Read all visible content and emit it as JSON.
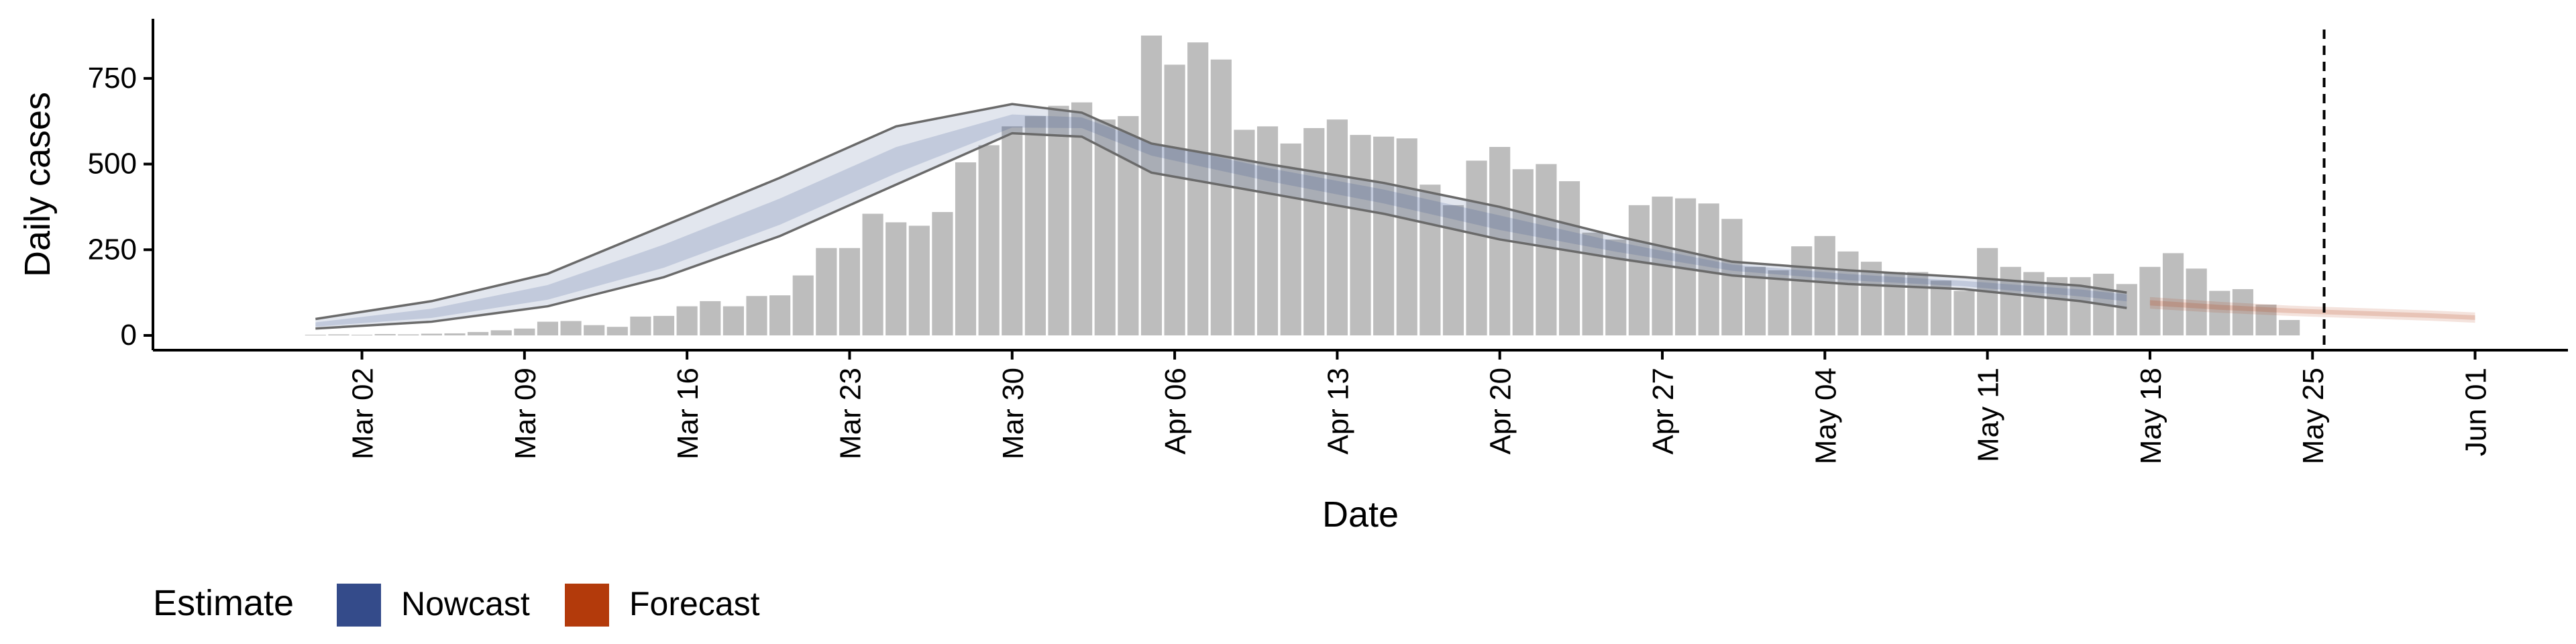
{
  "chart_data": {
    "type": "bar",
    "xlabel": "Date",
    "ylabel": "Daily cases",
    "ylim": [
      0,
      920
    ],
    "y_ticks": [
      0,
      250,
      500,
      750
    ],
    "x_tick_labels": [
      "Mar 02",
      "Mar 09",
      "Mar 16",
      "Mar 23",
      "Mar 30",
      "Apr 06",
      "Apr 13",
      "Apr 20",
      "Apr 27",
      "May 04",
      "May 11",
      "May 18",
      "May 25",
      "Jun 01"
    ],
    "x_tick_dates": [
      "2020-03-02",
      "2020-03-09",
      "2020-03-16",
      "2020-03-23",
      "2020-03-30",
      "2020-04-06",
      "2020-04-13",
      "2020-04-20",
      "2020-04-27",
      "2020-05-04",
      "2020-05-11",
      "2020-05-18",
      "2020-05-25",
      "2020-06-01"
    ],
    "x_range": [
      "2020-02-22",
      "2020-06-05"
    ],
    "bar_color": "#bdbdbd",
    "bars": {
      "dates": [
        "2020-02-29",
        "2020-03-01",
        "2020-03-02",
        "2020-03-03",
        "2020-03-04",
        "2020-03-05",
        "2020-03-06",
        "2020-03-07",
        "2020-03-08",
        "2020-03-09",
        "2020-03-10",
        "2020-03-11",
        "2020-03-12",
        "2020-03-13",
        "2020-03-14",
        "2020-03-15",
        "2020-03-16",
        "2020-03-17",
        "2020-03-18",
        "2020-03-19",
        "2020-03-20",
        "2020-03-21",
        "2020-03-22",
        "2020-03-23",
        "2020-03-24",
        "2020-03-25",
        "2020-03-26",
        "2020-03-27",
        "2020-03-28",
        "2020-03-29",
        "2020-03-30",
        "2020-03-31",
        "2020-04-01",
        "2020-04-02",
        "2020-04-03",
        "2020-04-04",
        "2020-04-05",
        "2020-04-06",
        "2020-04-07",
        "2020-04-08",
        "2020-04-09",
        "2020-04-10",
        "2020-04-11",
        "2020-04-12",
        "2020-04-13",
        "2020-04-14",
        "2020-04-15",
        "2020-04-16",
        "2020-04-17",
        "2020-04-18",
        "2020-04-19",
        "2020-04-20",
        "2020-04-21",
        "2020-04-22",
        "2020-04-23",
        "2020-04-24",
        "2020-04-25",
        "2020-04-26",
        "2020-04-27",
        "2020-04-28",
        "2020-04-29",
        "2020-04-30",
        "2020-05-01",
        "2020-05-02",
        "2020-05-03",
        "2020-05-04",
        "2020-05-05",
        "2020-05-06",
        "2020-05-07",
        "2020-05-08",
        "2020-05-09",
        "2020-05-10",
        "2020-05-11",
        "2020-05-12",
        "2020-05-13",
        "2020-05-14",
        "2020-05-15",
        "2020-05-16",
        "2020-05-17",
        "2020-05-18",
        "2020-05-19",
        "2020-05-20",
        "2020-05-21",
        "2020-05-22",
        "2020-05-23",
        "2020-05-24"
      ],
      "values": [
        2,
        3,
        2,
        4,
        3,
        5,
        6,
        10,
        15,
        20,
        40,
        42,
        30,
        25,
        55,
        57,
        85,
        100,
        85,
        115,
        117,
        175,
        255,
        255,
        355,
        330,
        320,
        360,
        505,
        555,
        610,
        640,
        670,
        680,
        630,
        640,
        875,
        790,
        855,
        805,
        600,
        610,
        560,
        605,
        630,
        585,
        580,
        575,
        440,
        380,
        510,
        550,
        485,
        500,
        450,
        300,
        280,
        380,
        405,
        400,
        385,
        340,
        200,
        190,
        260,
        290,
        245,
        215,
        185,
        185,
        160,
        130,
        255,
        200,
        185,
        170,
        170,
        180,
        150,
        200,
        240,
        195,
        130,
        135,
        90,
        45
      ]
    },
    "series": [
      {
        "name": "Nowcast",
        "color": "#344b8a",
        "dates": [
          "2020-02-29",
          "2020-03-05",
          "2020-03-10",
          "2020-03-15",
          "2020-03-20",
          "2020-03-25",
          "2020-03-30",
          "2020-04-02",
          "2020-04-05",
          "2020-04-10",
          "2020-04-15",
          "2020-04-20",
          "2020-04-25",
          "2020-04-30",
          "2020-05-05",
          "2020-05-10",
          "2020-05-15",
          "2020-05-17"
        ],
        "estimate": [
          30,
          60,
          120,
          220,
          350,
          500,
          620,
          625,
          565,
          480,
          410,
          330,
          260,
          200,
          170,
          150,
          125,
          115
        ],
        "lower_90": [
          20,
          40,
          85,
          170,
          290,
          440,
          590,
          580,
          475,
          415,
          355,
          280,
          225,
          175,
          150,
          135,
          100,
          80
        ],
        "upper_90": [
          48,
          100,
          180,
          320,
          460,
          610,
          675,
          650,
          560,
          500,
          445,
          375,
          290,
          215,
          190,
          170,
          145,
          125
        ]
      },
      {
        "name": "Forecast",
        "color": "#b33a0b",
        "dates": [
          "2020-05-18",
          "2020-05-21",
          "2020-05-24",
          "2020-05-27",
          "2020-05-30",
          "2020-06-01"
        ],
        "estimate": [
          95,
          82,
          72,
          65,
          58,
          52
        ],
        "lower_90": [
          78,
          66,
          57,
          50,
          43,
          37
        ],
        "upper_90": [
          112,
          98,
          87,
          80,
          73,
          67
        ]
      }
    ],
    "reference_line": {
      "date": "2020-05-25.5",
      "style": "dashed"
    },
    "legend": {
      "title": "Estimate",
      "position": "bottom-left",
      "items": [
        {
          "label": "Nowcast",
          "color": "#344b8a"
        },
        {
          "label": "Forecast",
          "color": "#b33a0b"
        }
      ]
    }
  }
}
